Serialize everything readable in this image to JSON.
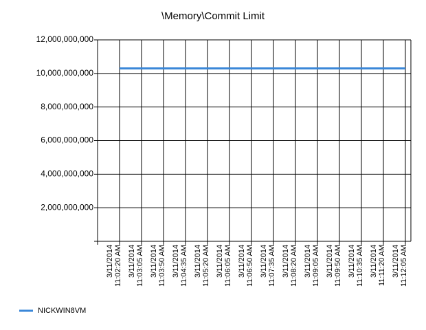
{
  "chart_data": {
    "type": "line",
    "title": "\\Memory\\Commit Limit",
    "categories": [
      "3/11/2014\n11:02:20 AM",
      "3/11/2014\n11:03:05 AM",
      "3/11/2014\n11:03:50 AM",
      "3/11/2014\n11:04:35 AM",
      "3/11/2014\n11:05:20 AM",
      "3/11/2014\n11:06:05 AM",
      "3/11/2014\n11:06:50 AM",
      "3/11/2014\n11:07:35 AM",
      "3/11/2014\n11:08:20 AM",
      "3/11/2014\n11:09:05 AM",
      "3/11/2014\n11:09:50 AM",
      "3/11/2014\n11:10:35 AM",
      "3/11/2014\n11:11:20 AM",
      "3/11/2014\n11:12:05 AM"
    ],
    "series": [
      {
        "name": "NICKWIN8VM",
        "color": "#3a87d8",
        "values": [
          10300000000,
          10300000000,
          10300000000,
          10300000000,
          10300000000,
          10300000000,
          10300000000,
          10300000000,
          10300000000,
          10300000000,
          10300000000,
          10300000000,
          10300000000,
          10300000000
        ]
      }
    ],
    "ylim": [
      0,
      12000000000
    ],
    "yticks": [
      {
        "value": 2000000000,
        "label": "2,000,000,000"
      },
      {
        "value": 4000000000,
        "label": "4,000,000,000"
      },
      {
        "value": 6000000000,
        "label": "6,000,000,000"
      },
      {
        "value": 8000000000,
        "label": "8,000,000,000"
      },
      {
        "value": 10000000000,
        "label": "10,000,000,000"
      },
      {
        "value": 12000000000,
        "label": "12,000,000,000"
      }
    ],
    "grid": true,
    "legend": "bottom-left"
  }
}
